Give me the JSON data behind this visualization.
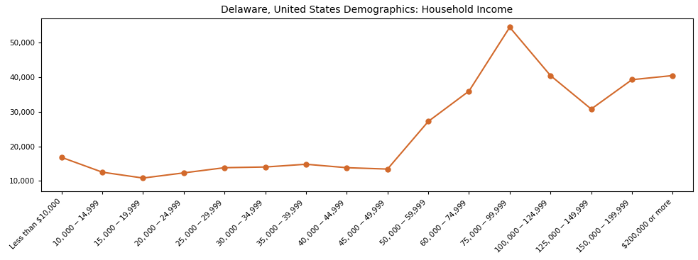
{
  "title": "Delaware, United States Demographics: Household Income",
  "categories": [
    "Less than $10,000",
    "$10,000 - $14,999",
    "$15,000 - $19,999",
    "$20,000 - $24,999",
    "$25,000 - $29,999",
    "$30,000 - $34,999",
    "$35,000 - $39,999",
    "$40,000 - $44,999",
    "$45,000 - $49,999",
    "$50,000 - $59,999",
    "$60,000 - $74,999",
    "$75,000 - $99,999",
    "$100,000 - $124,999",
    "$125,000 - $149,999",
    "$150,000 - $199,999",
    "$200,000 or more"
  ],
  "values": [
    16800,
    12500,
    10800,
    12300,
    13800,
    14000,
    14800,
    13800,
    13400,
    27200,
    36000,
    54500,
    40500,
    30800,
    39300,
    40500
  ],
  "line_color": "#d2692b",
  "marker_color": "#d2692b",
  "marker_style": "o",
  "marker_size": 5,
  "line_width": 1.5,
  "background_color": "#ffffff",
  "ylim": [
    7000,
    57000
  ],
  "yticks": [
    10000,
    20000,
    30000,
    40000,
    50000
  ],
  "title_fontsize": 10,
  "tick_fontsize": 7.5,
  "figsize": [
    9.83,
    3.67
  ],
  "dpi": 100
}
